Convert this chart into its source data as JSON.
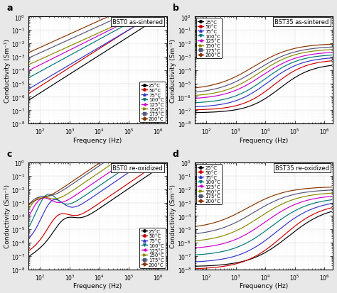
{
  "panels": [
    {
      "label": "a",
      "title": "BST0 as-sintered",
      "legend_loc": "lower right",
      "legend_inside": true,
      "ylim": [
        1e-08,
        1.0
      ],
      "xlim": [
        40,
        2000000
      ],
      "curves": [
        {
          "temp": "25°C",
          "color": "#000000",
          "marker": "o",
          "type": "bst0_as_25"
        },
        {
          "temp": "50°C",
          "color": "#cc0000",
          "marker": "o",
          "type": "bst0_as_50"
        },
        {
          "temp": "75°C",
          "color": "#3333cc",
          "marker": "^",
          "type": "bst0_as_75"
        },
        {
          "temp": "100°C",
          "color": "#007777",
          "marker": "v",
          "type": "bst0_as_100"
        },
        {
          "temp": "125°C",
          "color": "#cc00cc",
          "marker": "<",
          "type": "bst0_as_125"
        },
        {
          "temp": "150°C",
          "color": "#888800",
          "marker": ">",
          "type": "bst0_as_150"
        },
        {
          "temp": "175°C",
          "color": "#555577",
          "marker": "s",
          "type": "bst0_as_175"
        },
        {
          "temp": "200°C",
          "color": "#883300",
          "marker": "D",
          "type": "bst0_as_200"
        }
      ]
    },
    {
      "label": "b",
      "title": "BST35 as-sintered",
      "legend_loc": "upper left",
      "legend_inside": true,
      "ylim": [
        1e-08,
        1.0
      ],
      "xlim": [
        40,
        2000000
      ],
      "curves": [
        {
          "temp": "25°C",
          "color": "#000000",
          "marker": "o",
          "type": "bst35_as_25"
        },
        {
          "temp": "50°C",
          "color": "#cc0000",
          "marker": "o",
          "type": "bst35_as_50"
        },
        {
          "temp": "75°C",
          "color": "#3333cc",
          "marker": "^",
          "type": "bst35_as_75"
        },
        {
          "temp": "100°C",
          "color": "#007777",
          "marker": "v",
          "type": "bst35_as_100"
        },
        {
          "temp": "125°C",
          "color": "#cc00cc",
          "marker": "<",
          "type": "bst35_as_125"
        },
        {
          "temp": "150°C",
          "color": "#888800",
          "marker": ">",
          "type": "bst35_as_150"
        },
        {
          "temp": "175°C",
          "color": "#555577",
          "marker": "s",
          "type": "bst35_as_175"
        },
        {
          "temp": "200°C",
          "color": "#883300",
          "marker": "D",
          "type": "bst35_as_200"
        }
      ]
    },
    {
      "label": "c",
      "title": "BST0 re-oxidized",
      "legend_loc": "lower right",
      "legend_inside": true,
      "ylim": [
        1e-08,
        1.0
      ],
      "xlim": [
        40,
        2000000
      ],
      "curves": [
        {
          "temp": "25°C",
          "color": "#000000",
          "marker": "o",
          "type": "bst0_re_25"
        },
        {
          "temp": "50°C",
          "color": "#cc0000",
          "marker": "o",
          "type": "bst0_re_50"
        },
        {
          "temp": "75°C",
          "color": "#3333cc",
          "marker": "^",
          "type": "bst0_re_75"
        },
        {
          "temp": "100°C",
          "color": "#007777",
          "marker": "v",
          "type": "bst0_re_100"
        },
        {
          "temp": "125°C",
          "color": "#cc00cc",
          "marker": "<",
          "type": "bst0_re_125"
        },
        {
          "temp": "150°C",
          "color": "#888800",
          "marker": ">",
          "type": "bst0_re_150"
        },
        {
          "temp": "175°C",
          "color": "#555577",
          "marker": "s",
          "type": "bst0_re_175"
        },
        {
          "temp": "200°C",
          "color": "#883300",
          "marker": "D",
          "type": "bst0_re_200"
        }
      ]
    },
    {
      "label": "d",
      "title": "BST35 re-oxidized",
      "legend_loc": "upper left",
      "legend_inside": true,
      "ylim": [
        1e-08,
        1.0
      ],
      "xlim": [
        40,
        2000000
      ],
      "curves": [
        {
          "temp": "25°C",
          "color": "#000000",
          "marker": "o",
          "type": "bst35_re_25"
        },
        {
          "temp": "50°C",
          "color": "#cc0000",
          "marker": "o",
          "type": "bst35_re_50"
        },
        {
          "temp": "75°C",
          "color": "#3333cc",
          "marker": "^",
          "type": "bst35_re_75"
        },
        {
          "temp": "100°C",
          "color": "#007777",
          "marker": "v",
          "type": "bst35_re_100"
        },
        {
          "temp": "125°C",
          "color": "#cc00cc",
          "marker": "<",
          "type": "bst35_re_125"
        },
        {
          "temp": "150°C",
          "color": "#888800",
          "marker": ">",
          "type": "bst35_re_150"
        },
        {
          "temp": "175°C",
          "color": "#555577",
          "marker": "s",
          "type": "bst35_re_175"
        },
        {
          "temp": "200°C",
          "color": "#883300",
          "marker": "D",
          "type": "bst35_re_200"
        }
      ]
    }
  ],
  "xlabel": "Frequency (Hz)",
  "ylabel": "Conductivity (Sm⁻¹)",
  "background": "#e8e8e8"
}
